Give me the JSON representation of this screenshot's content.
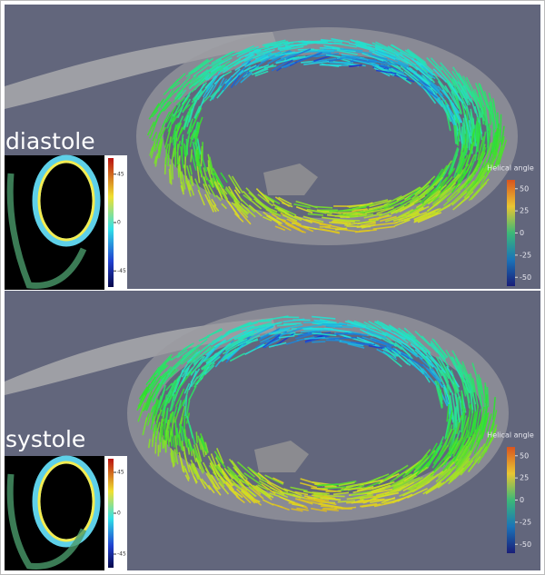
{
  "panels": [
    {
      "label": "diastole",
      "inset_colorbar": {
        "ticks": [
          45,
          0,
          -45
        ],
        "lim": [
          -60,
          60
        ]
      },
      "colorbar": {
        "title": "Helical angle",
        "ticks": [
          50,
          25,
          0,
          -25,
          -50
        ],
        "lim": [
          -60,
          60
        ]
      }
    },
    {
      "label": "systole",
      "inset_colorbar": {
        "ticks": [
          45,
          0,
          -45
        ],
        "lim": [
          -60,
          60
        ]
      },
      "colorbar": {
        "title": "Helical angle",
        "ticks": [
          50,
          25,
          0,
          -25,
          -50
        ],
        "lim": [
          -60,
          60
        ]
      }
    }
  ]
}
